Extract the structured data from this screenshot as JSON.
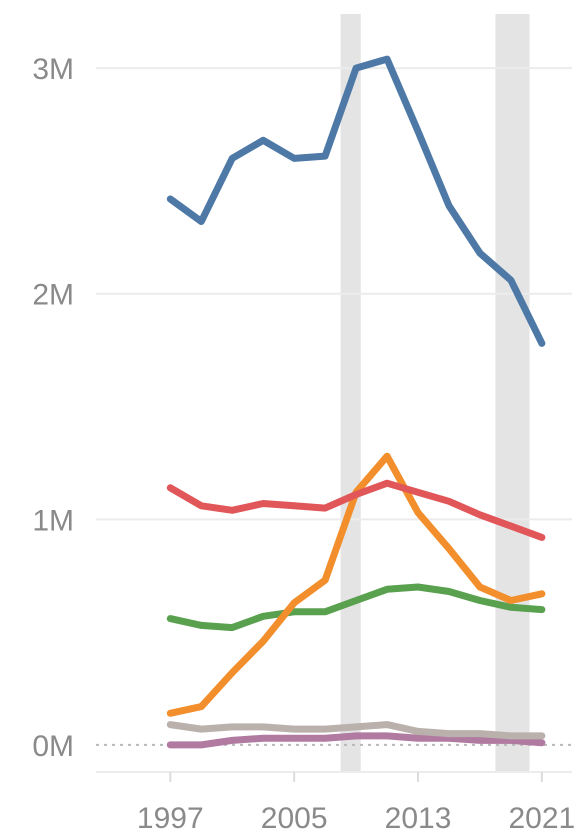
{
  "chart_data": {
    "type": "line",
    "x": [
      1997,
      1999,
      2001,
      2003,
      2005,
      2007,
      2009,
      2011,
      2013,
      2015,
      2017,
      2019,
      2021
    ],
    "xlim": [
      1992.2,
      2022.3
    ],
    "ylim": [
      -120000,
      3240000
    ],
    "x_ticks": [
      1997,
      2005,
      2013,
      2021
    ],
    "x_tick_labels": [
      "1997",
      "2005",
      "2013",
      "2021"
    ],
    "y_ticks": [
      0,
      1000000,
      2000000,
      3000000
    ],
    "y_tick_labels": [
      "0M",
      "1M",
      "2M",
      "3M"
    ],
    "shaded_periods": [
      [
        2008,
        2009.3
      ],
      [
        2018,
        2020.2
      ]
    ],
    "grid": true,
    "series": [
      {
        "color": "#4e79a7",
        "values": [
          2420000,
          2320000,
          2600000,
          2680000,
          2600000,
          2610000,
          3000000,
          3040000,
          2720000,
          2390000,
          2180000,
          2060000,
          1780000
        ]
      },
      {
        "color": "#e15759",
        "values": [
          1140000,
          1060000,
          1040000,
          1070000,
          1060000,
          1050000,
          1110000,
          1160000,
          1120000,
          1080000,
          1020000,
          970000,
          920000
        ]
      },
      {
        "color": "#f28e2b",
        "values": [
          140000,
          170000,
          320000,
          460000,
          630000,
          730000,
          1120000,
          1280000,
          1030000,
          870000,
          700000,
          640000,
          670000
        ]
      },
      {
        "color": "#59a14f",
        "values": [
          560000,
          530000,
          520000,
          570000,
          590000,
          590000,
          640000,
          690000,
          700000,
          680000,
          640000,
          610000,
          600000
        ]
      },
      {
        "color": "#bab0ac",
        "values": [
          90000,
          70000,
          80000,
          80000,
          70000,
          70000,
          80000,
          90000,
          60000,
          50000,
          50000,
          40000,
          40000
        ]
      },
      {
        "color": "#b07aa1",
        "values": [
          0,
          0,
          20000,
          30000,
          30000,
          30000,
          40000,
          40000,
          30000,
          30000,
          20000,
          20000,
          10000
        ]
      }
    ]
  }
}
